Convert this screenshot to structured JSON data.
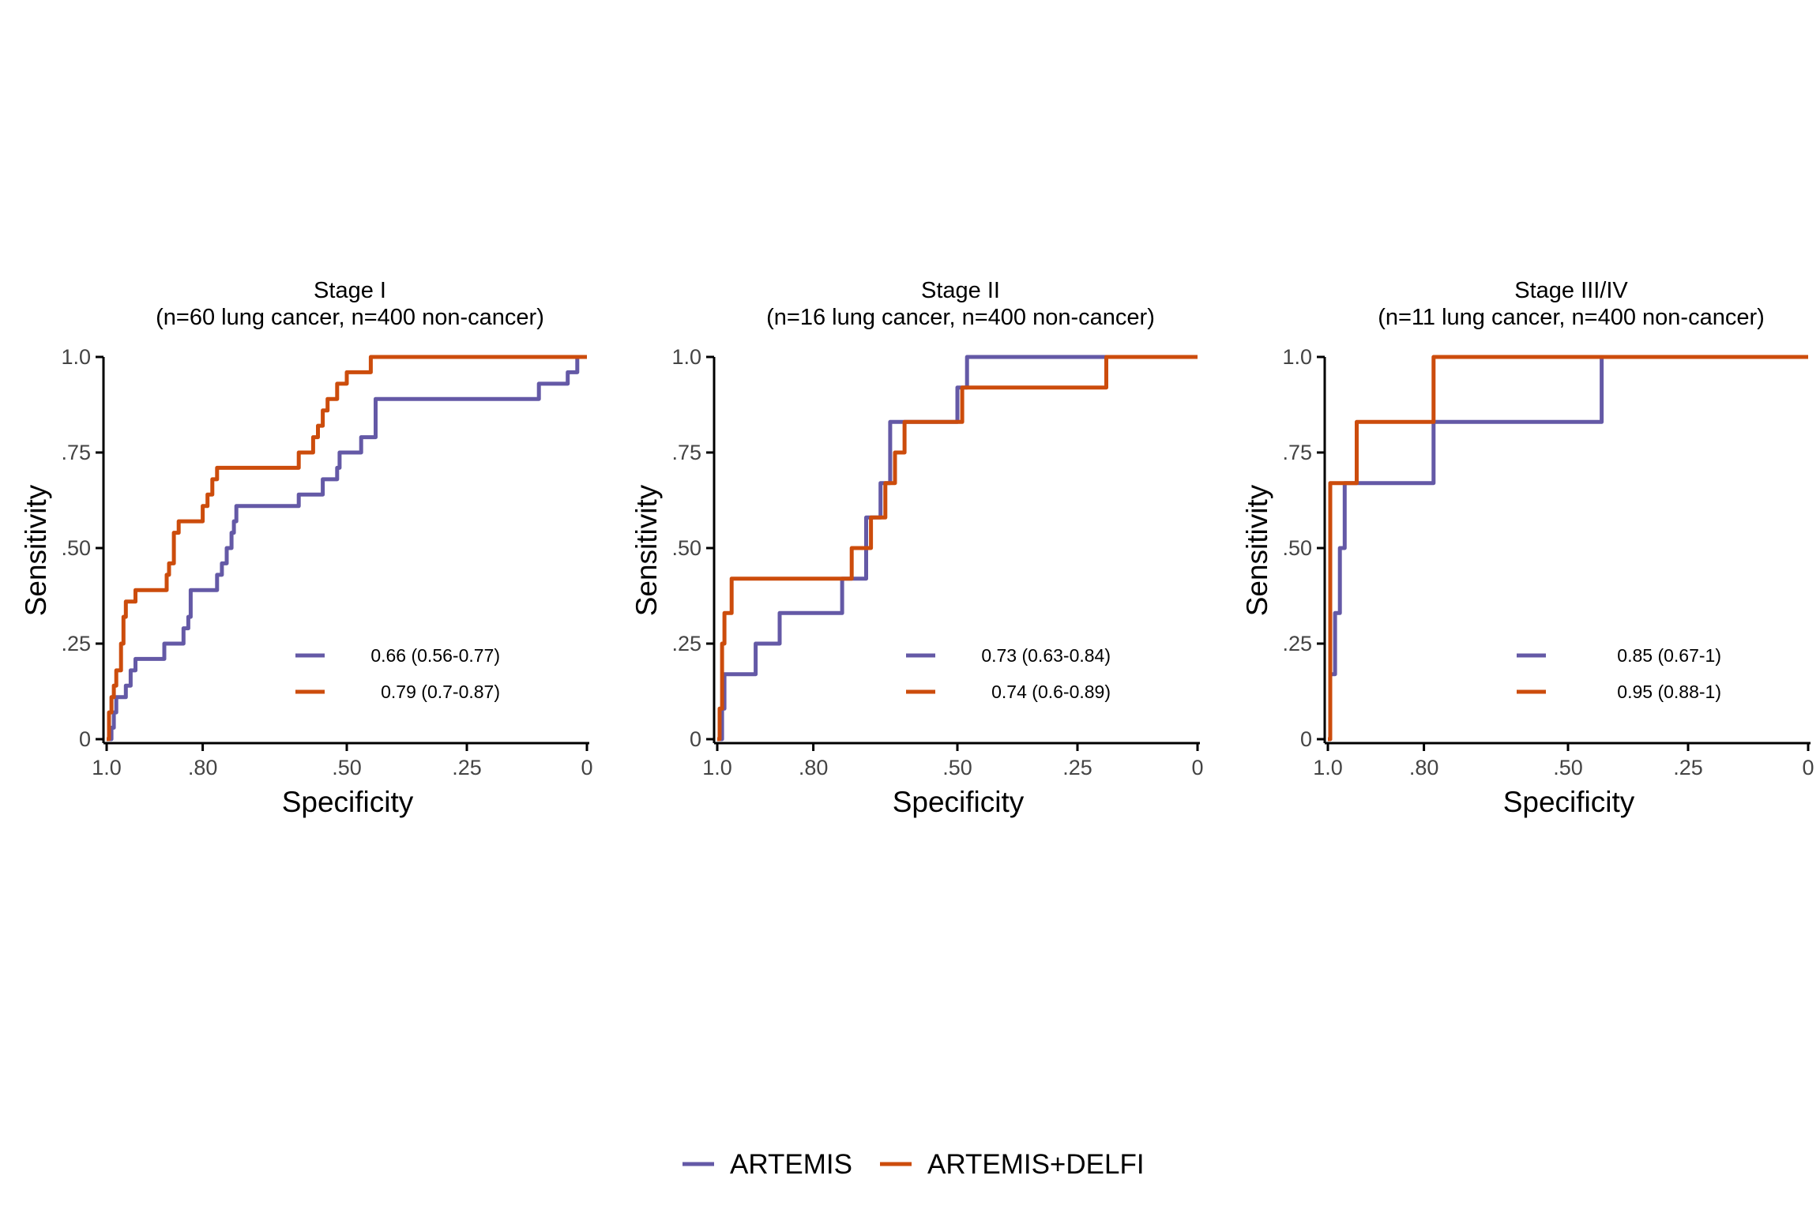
{
  "colors": {
    "artemis": "#6459a6",
    "artemis_delfi": "#cc4c0c",
    "axis": "#000000"
  },
  "legend": {
    "items": [
      {
        "label": "ARTEMIS",
        "color": "#6459a6"
      },
      {
        "label": "ARTEMIS+DELFI",
        "color": "#cc4c0c"
      }
    ]
  },
  "chart_data": [
    {
      "type": "line",
      "title": "Stage I",
      "subtitle": "(n=60 lung cancer, n=400 non-cancer)",
      "xlabel": "Specificity",
      "ylabel": "Sensitivity",
      "xlim": [
        1,
        0
      ],
      "ylim": [
        0,
        1
      ],
      "xticks": [
        {
          "v": 1,
          "label": "1.0"
        },
        {
          "v": 0.8,
          "label": ".80"
        },
        {
          "v": 0.5,
          "label": ".50"
        },
        {
          "v": 0.25,
          "label": ".25"
        },
        {
          "v": 0,
          "label": "0"
        }
      ],
      "yticks": [
        {
          "v": 0,
          "label": "0"
        },
        {
          "v": 0.25,
          "label": ".25"
        },
        {
          "v": 0.5,
          "label": ".50"
        },
        {
          "v": 0.75,
          "label": ".75"
        },
        {
          "v": 1,
          "label": "1.0"
        }
      ],
      "grid": false,
      "series": [
        {
          "name": "ARTEMIS",
          "auc_label": "0.66 (0.56-0.77)",
          "x": [
            1,
            0.99,
            0.99,
            0.985,
            0.985,
            0.98,
            0.98,
            0.96,
            0.96,
            0.95,
            0.95,
            0.94,
            0.94,
            0.93,
            0.93,
            0.88,
            0.88,
            0.84,
            0.84,
            0.83,
            0.83,
            0.825,
            0.825,
            0.8,
            0.8,
            0.77,
            0.77,
            0.76,
            0.76,
            0.75,
            0.75,
            0.74,
            0.74,
            0.735,
            0.735,
            0.73,
            0.73,
            0.72,
            0.72,
            0.6,
            0.6,
            0.55,
            0.55,
            0.52,
            0.52,
            0.515,
            0.515,
            0.5,
            0.5,
            0.47,
            0.47,
            0.44,
            0.44,
            0.1,
            0.1,
            0.04,
            0.04,
            0.02,
            0.02
          ],
          "y": [
            0,
            0,
            0.03,
            0.03,
            0.07,
            0.07,
            0.11,
            0.11,
            0.14,
            0.14,
            0.18,
            0.18,
            0.21,
            0.21,
            0.21,
            0.21,
            0.25,
            0.25,
            0.29,
            0.29,
            0.32,
            0.32,
            0.39,
            0.39,
            0.39,
            0.39,
            0.43,
            0.43,
            0.46,
            0.46,
            0.5,
            0.5,
            0.54,
            0.54,
            0.57,
            0.57,
            0.61,
            0.61,
            0.61,
            0.61,
            0.64,
            0.64,
            0.68,
            0.68,
            0.71,
            0.71,
            0.75,
            0.75,
            0.75,
            0.75,
            0.79,
            0.79,
            0.89,
            0.89,
            0.93,
            0.93,
            0.96,
            0.96,
            1
          ]
        },
        {
          "name": "ARTEMIS+DELFI",
          "auc_label": "0.79 (0.7-0.87)",
          "x": [
            1,
            0.995,
            0.995,
            0.99,
            0.99,
            0.985,
            0.985,
            0.98,
            0.98,
            0.97,
            0.97,
            0.965,
            0.965,
            0.96,
            0.96,
            0.94,
            0.94,
            0.92,
            0.92,
            0.875,
            0.875,
            0.87,
            0.87,
            0.86,
            0.86,
            0.85,
            0.85,
            0.82,
            0.82,
            0.8,
            0.8,
            0.79,
            0.79,
            0.78,
            0.78,
            0.77,
            0.77,
            0.6,
            0.6,
            0.57,
            0.57,
            0.56,
            0.56,
            0.55,
            0.55,
            0.54,
            0.54,
            0.52,
            0.52,
            0.5,
            0.5,
            0.45,
            0.45,
            0.17,
            0.17,
            0
          ],
          "y": [
            0,
            0,
            0.07,
            0.07,
            0.11,
            0.11,
            0.14,
            0.14,
            0.18,
            0.18,
            0.25,
            0.25,
            0.32,
            0.32,
            0.36,
            0.36,
            0.39,
            0.39,
            0.39,
            0.39,
            0.43,
            0.43,
            0.46,
            0.46,
            0.54,
            0.54,
            0.57,
            0.57,
            0.57,
            0.57,
            0.61,
            0.61,
            0.64,
            0.64,
            0.68,
            0.68,
            0.71,
            0.71,
            0.75,
            0.75,
            0.79,
            0.79,
            0.82,
            0.82,
            0.86,
            0.86,
            0.89,
            0.89,
            0.93,
            0.93,
            0.96,
            0.96,
            1,
            1,
            1,
            1
          ]
        }
      ]
    },
    {
      "type": "line",
      "title": "Stage II",
      "subtitle": "(n=16 lung cancer, n=400 non-cancer)",
      "xlabel": "Specificity",
      "ylabel": "Sensitivity",
      "xlim": [
        1,
        0
      ],
      "ylim": [
        0,
        1
      ],
      "xticks": [
        {
          "v": 1,
          "label": "1.0"
        },
        {
          "v": 0.8,
          "label": ".80"
        },
        {
          "v": 0.5,
          "label": ".50"
        },
        {
          "v": 0.25,
          "label": ".25"
        },
        {
          "v": 0,
          "label": "0"
        }
      ],
      "yticks": [
        {
          "v": 0,
          "label": "0"
        },
        {
          "v": 0.25,
          "label": ".25"
        },
        {
          "v": 0.5,
          "label": ".50"
        },
        {
          "v": 0.75,
          "label": ".75"
        },
        {
          "v": 1,
          "label": "1.0"
        }
      ],
      "grid": false,
      "series": [
        {
          "name": "ARTEMIS",
          "auc_label": "0.73 (0.63-0.84)",
          "x": [
            1,
            0.99,
            0.99,
            0.985,
            0.985,
            0.92,
            0.92,
            0.87,
            0.87,
            0.74,
            0.74,
            0.69,
            0.69,
            0.66,
            0.66,
            0.64,
            0.64,
            0.625,
            0.625,
            0.5,
            0.5,
            0.48,
            0.48,
            0.19,
            0.19,
            0
          ],
          "y": [
            0,
            0,
            0.08,
            0.08,
            0.17,
            0.17,
            0.25,
            0.25,
            0.33,
            0.33,
            0.42,
            0.42,
            0.58,
            0.58,
            0.67,
            0.67,
            0.83,
            0.83,
            0.83,
            0.83,
            0.92,
            0.92,
            1,
            1,
            1,
            1
          ]
        },
        {
          "name": "ARTEMIS+DELFI",
          "auc_label": "0.74 (0.6-0.89)",
          "x": [
            1,
            0.995,
            0.995,
            0.99,
            0.99,
            0.985,
            0.985,
            0.97,
            0.97,
            0.72,
            0.72,
            0.69,
            0.69,
            0.68,
            0.68,
            0.65,
            0.65,
            0.63,
            0.63,
            0.61,
            0.61,
            0.6,
            0.6,
            0.49,
            0.49,
            0.19,
            0.19,
            0
          ],
          "y": [
            0,
            0,
            0.08,
            0.08,
            0.25,
            0.25,
            0.33,
            0.33,
            0.42,
            0.42,
            0.5,
            0.5,
            0.5,
            0.5,
            0.58,
            0.58,
            0.67,
            0.67,
            0.75,
            0.75,
            0.83,
            0.83,
            0.83,
            0.83,
            0.92,
            0.92,
            1,
            1
          ]
        }
      ]
    },
    {
      "type": "line",
      "title": "Stage III/IV",
      "subtitle": "(n=11 lung cancer, n=400 non-cancer)",
      "xlabel": "Specificity",
      "ylabel": "Sensitivity",
      "xlim": [
        1,
        0
      ],
      "ylim": [
        0,
        1
      ],
      "xticks": [
        {
          "v": 1,
          "label": "1.0"
        },
        {
          "v": 0.8,
          "label": ".80"
        },
        {
          "v": 0.5,
          "label": ".50"
        },
        {
          "v": 0.25,
          "label": ".25"
        },
        {
          "v": 0,
          "label": "0"
        }
      ],
      "yticks": [
        {
          "v": 0,
          "label": "0"
        },
        {
          "v": 0.25,
          "label": ".25"
        },
        {
          "v": 0.5,
          "label": ".50"
        },
        {
          "v": 0.75,
          "label": ".75"
        },
        {
          "v": 1,
          "label": "1.0"
        }
      ],
      "grid": false,
      "series": [
        {
          "name": "ARTEMIS",
          "auc_label": "0.85 (0.67-1)",
          "x": [
            1,
            0.995,
            0.995,
            0.985,
            0.985,
            0.975,
            0.975,
            0.97,
            0.97,
            0.965,
            0.965,
            0.78,
            0.78,
            0.43,
            0.43,
            0
          ],
          "y": [
            0,
            0,
            0.17,
            0.17,
            0.33,
            0.33,
            0.5,
            0.5,
            0.5,
            0.5,
            0.67,
            0.67,
            0.83,
            0.83,
            1,
            1
          ]
        },
        {
          "name": "ARTEMIS+DELFI",
          "auc_label": "0.95 (0.88-1)",
          "x": [
            1,
            0.995,
            0.995,
            0.99,
            0.99,
            0.94,
            0.94,
            0.78,
            0.78,
            0
          ],
          "y": [
            0,
            0,
            0.67,
            0.67,
            0.67,
            0.67,
            0.83,
            0.83,
            1,
            1
          ]
        }
      ]
    }
  ]
}
